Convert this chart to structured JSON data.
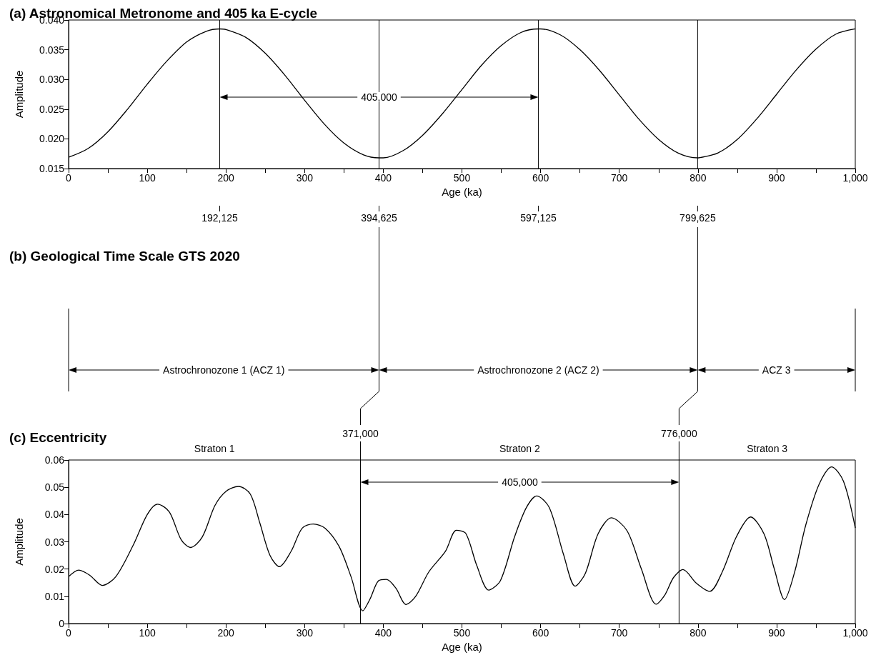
{
  "chart_data": [
    {
      "type": "line",
      "title": "(a) Astronomical Metronome and 405 ka E-cycle",
      "xlabel": "Age (ka)",
      "ylabel": "Amplitude",
      "xlim": [
        0,
        1000
      ],
      "xticks": [
        0,
        {
          "value": 50,
          "label": null
        },
        100,
        {
          "value": 150,
          "label": null
        },
        200,
        {
          "value": 250,
          "label": null
        },
        300,
        {
          "value": 350,
          "label": null
        },
        400,
        {
          "value": 450,
          "label": null
        },
        500,
        {
          "value": 550,
          "label": null
        },
        600,
        {
          "value": 650,
          "label": null
        },
        700,
        {
          "value": 750,
          "label": null
        },
        800,
        {
          "value": 850,
          "label": null
        },
        900,
        {
          "value": 950,
          "label": null
        },
        {
          "value": 1000,
          "label": "1,000"
        }
      ],
      "ylim": [
        0.015,
        0.04
      ],
      "yticks": [
        0.015,
        {
          "value": 0.02,
          "label": "0.020"
        },
        0.025,
        {
          "value": 0.03,
          "label": "0.030"
        },
        0.035,
        {
          "value": 0.04,
          "label": "0.040"
        }
      ],
      "series": [
        {
          "color": "#000000",
          "x": [
            0,
            25,
            50,
            75,
            100,
            125,
            150,
            175,
            192.125,
            200,
            225,
            250,
            275,
            300,
            325,
            350,
            375,
            394.625,
            400,
            425,
            450,
            475,
            500,
            525,
            550,
            575,
            597.125,
            600,
            625,
            650,
            675,
            700,
            725,
            750,
            775,
            799.625,
            800,
            825,
            850,
            875,
            900,
            925,
            950,
            975,
            1000
          ],
          "values": [
            0.0169,
            0.0184,
            0.0212,
            0.025,
            0.0292,
            0.0331,
            0.0363,
            0.0381,
            0.0385,
            0.0384,
            0.0371,
            0.0344,
            0.0307,
            0.0265,
            0.0225,
            0.0193,
            0.0173,
            0.0168,
            0.0168,
            0.018,
            0.0206,
            0.0242,
            0.0283,
            0.0324,
            0.0357,
            0.0379,
            0.0385,
            0.0385,
            0.0375,
            0.035,
            0.0315,
            0.0274,
            0.0233,
            0.0199,
            0.0176,
            0.0168,
            0.0168,
            0.0176,
            0.0199,
            0.0234,
            0.0275,
            0.0316,
            0.0351,
            0.0376,
            0.0385
          ]
        }
      ],
      "ref_lines": [
        {
          "axis": "x",
          "value": 192.125,
          "label": "192,125"
        },
        {
          "axis": "x",
          "value": 394.625,
          "label": "394,625"
        },
        {
          "axis": "x",
          "value": 597.125,
          "label": "597,125"
        },
        {
          "axis": "x",
          "value": 799.625,
          "label": "799,625"
        }
      ],
      "annotations": [
        "405,000"
      ]
    },
    {
      "type": "other",
      "title": "(b) Geological Time Scale GTS 2020",
      "annotations": [
        "Astrochronozone 1 (ACZ 1)",
        "Astrochronozone 2 (ACZ 2)",
        "ACZ 3"
      ]
    },
    {
      "type": "line",
      "title": "(c) Eccentricity",
      "xlabel": "Age (ka)",
      "ylabel": "Amplitude",
      "xlim": [
        0,
        1000
      ],
      "xticks": [
        0,
        {
          "value": 50,
          "label": null
        },
        100,
        {
          "value": 150,
          "label": null
        },
        200,
        {
          "value": 250,
          "label": null
        },
        300,
        {
          "value": 350,
          "label": null
        },
        400,
        {
          "value": 450,
          "label": null
        },
        500,
        {
          "value": 550,
          "label": null
        },
        600,
        {
          "value": 650,
          "label": null
        },
        700,
        {
          "value": 750,
          "label": null
        },
        800,
        {
          "value": 850,
          "label": null
        },
        900,
        {
          "value": 950,
          "label": null
        },
        {
          "value": 1000,
          "label": "1,000"
        }
      ],
      "ylim": [
        0,
        0.06
      ],
      "yticks": [
        0,
        0.01,
        0.02,
        0.03,
        0.04,
        0.05,
        0.06
      ],
      "series": [
        {
          "color": "#000000",
          "x": [
            0,
            13,
            27,
            43,
            60,
            82,
            100,
            113,
            128,
            143,
            155,
            170,
            186,
            200,
            216,
            231,
            243,
            256,
            268,
            283,
            297,
            311,
            326,
            344,
            359,
            374,
            383,
            394,
            404,
            416,
            429,
            441,
            458,
            479,
            493,
            505,
            519,
            534,
            549,
            567,
            582,
            595,
            611,
            629,
            644,
            657,
            673,
            690,
            710,
            728,
            747,
            758,
            769,
            781,
            798,
            815,
            831,
            849,
            867,
            884,
            897,
            910,
            923,
            937,
            954,
            970,
            985,
            1000
          ],
          "values": [
            0.0172,
            0.0196,
            0.0177,
            0.014,
            0.0172,
            0.0287,
            0.04,
            0.0438,
            0.041,
            0.0308,
            0.0279,
            0.0318,
            0.0433,
            0.0485,
            0.0503,
            0.0475,
            0.037,
            0.025,
            0.0209,
            0.0266,
            0.035,
            0.0365,
            0.035,
            0.0282,
            0.0172,
            0.0047,
            0.0089,
            0.0157,
            0.0162,
            0.013,
            0.007,
            0.0099,
            0.019,
            0.0265,
            0.0342,
            0.033,
            0.0212,
            0.0123,
            0.0158,
            0.0319,
            0.0426,
            0.0468,
            0.0426,
            0.0255,
            0.0137,
            0.0185,
            0.0329,
            0.0388,
            0.034,
            0.0201,
            0.0071,
            0.0105,
            0.0169,
            0.0198,
            0.0148,
            0.0118,
            0.019,
            0.0319,
            0.0391,
            0.0329,
            0.0201,
            0.0088,
            0.019,
            0.0361,
            0.0511,
            0.0575,
            0.0522,
            0.0351
          ]
        }
      ],
      "ref_lines": [
        {
          "axis": "x",
          "value": 371,
          "label": "371,000"
        },
        {
          "axis": "x",
          "value": 776,
          "label": "776,000"
        }
      ],
      "annotations": [
        "405,000",
        "Straton 1",
        "Straton 2",
        "Straton 3"
      ]
    }
  ]
}
